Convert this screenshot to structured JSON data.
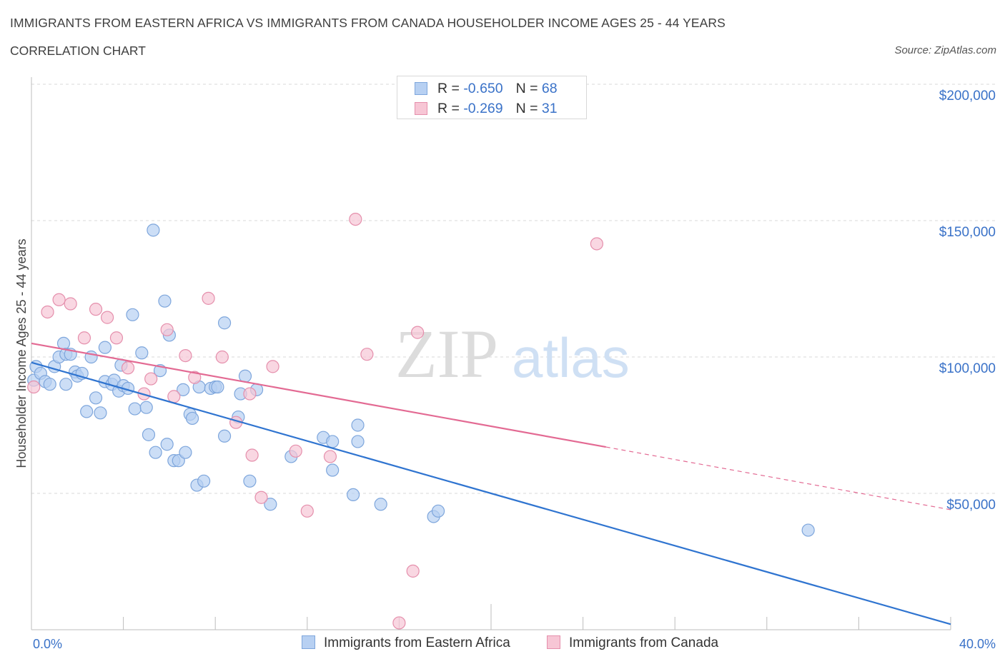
{
  "header": {
    "title": "IMMIGRANTS FROM EASTERN AFRICA VS IMMIGRANTS FROM CANADA HOUSEHOLDER INCOME AGES 25 - 44 YEARS",
    "subtitle": "CORRELATION CHART",
    "source": "Source: ZipAtlas.com"
  },
  "watermark": {
    "zip": "ZIP",
    "atlas": "atlas"
  },
  "legend": {
    "series1": {
      "r_label": "R = ",
      "r_value": "-0.650",
      "n_label": "N = ",
      "n_value": "68"
    },
    "series2": {
      "r_label": "R = ",
      "r_value": "-0.269",
      "n_label": "N = ",
      "n_value": "31"
    }
  },
  "colors": {
    "blue_fill": "#b7d0f2",
    "blue_stroke": "#7ea6dc",
    "blue_line": "#2f74d0",
    "pink_fill": "#f7c6d5",
    "pink_stroke": "#e58fac",
    "pink_line": "#e36a93",
    "grid": "#d9d9d9",
    "tick_text": "#3a72c8"
  },
  "chart_data": {
    "type": "scatter",
    "title": "IMMIGRANTS FROM EASTERN AFRICA VS IMMIGRANTS FROM CANADA HOUSEHOLDER INCOME AGES 25 - 44 YEARS",
    "ylabel": "Householder Income Ages 25 - 44 years",
    "xlabel": "",
    "xlim": [
      0,
      40
    ],
    "ylim": [
      0,
      200000
    ],
    "x_tick_labels": [
      "0.0%",
      "40.0%"
    ],
    "y_ticks": [
      50000,
      100000,
      150000,
      200000
    ],
    "y_tick_labels": [
      "$50,000",
      "$100,000",
      "$150,000",
      "$200,000"
    ],
    "grid": "horizontal dashed",
    "series": [
      {
        "name": "Immigrants from Eastern Africa",
        "points": [
          [
            0.1,
            91500
          ],
          [
            0.2,
            96500
          ],
          [
            0.4,
            94000
          ],
          [
            0.6,
            91000
          ],
          [
            0.8,
            90000
          ],
          [
            1.0,
            96500
          ],
          [
            1.2,
            100000
          ],
          [
            1.4,
            105000
          ],
          [
            1.5,
            101000
          ],
          [
            1.7,
            101000
          ],
          [
            1.9,
            94500
          ],
          [
            2.0,
            93000
          ],
          [
            2.2,
            94000
          ],
          [
            2.4,
            80000
          ],
          [
            2.6,
            100000
          ],
          [
            2.8,
            85000
          ],
          [
            3.0,
            79500
          ],
          [
            3.2,
            91000
          ],
          [
            3.2,
            103500
          ],
          [
            3.5,
            90000
          ],
          [
            3.6,
            91500
          ],
          [
            3.8,
            87500
          ],
          [
            3.9,
            97000
          ],
          [
            4.0,
            89500
          ],
          [
            4.2,
            88500
          ],
          [
            4.4,
            115500
          ],
          [
            4.5,
            81000
          ],
          [
            4.8,
            101500
          ],
          [
            5.0,
            81500
          ],
          [
            5.1,
            71500
          ],
          [
            5.3,
            146500
          ],
          [
            5.4,
            65000
          ],
          [
            5.6,
            95000
          ],
          [
            5.8,
            120500
          ],
          [
            5.9,
            68000
          ],
          [
            6.0,
            108000
          ],
          [
            6.2,
            62000
          ],
          [
            6.4,
            62000
          ],
          [
            6.6,
            88000
          ],
          [
            6.7,
            65000
          ],
          [
            6.9,
            79000
          ],
          [
            7.0,
            77500
          ],
          [
            7.2,
            53000
          ],
          [
            7.3,
            89000
          ],
          [
            7.5,
            54500
          ],
          [
            7.8,
            88500
          ],
          [
            8.0,
            89000
          ],
          [
            8.1,
            89000
          ],
          [
            8.4,
            112500
          ],
          [
            8.4,
            71000
          ],
          [
            9.0,
            78000
          ],
          [
            9.1,
            86500
          ],
          [
            9.3,
            93000
          ],
          [
            9.5,
            54500
          ],
          [
            9.8,
            88000
          ],
          [
            10.4,
            46000
          ],
          [
            11.3,
            63500
          ],
          [
            12.7,
            70500
          ],
          [
            13.1,
            69000
          ],
          [
            13.1,
            58500
          ],
          [
            14.0,
            49500
          ],
          [
            14.2,
            75000
          ],
          [
            14.2,
            69000
          ],
          [
            15.2,
            46000
          ],
          [
            17.5,
            41500
          ],
          [
            17.7,
            43500
          ],
          [
            33.8,
            36500
          ],
          [
            1.5,
            90000
          ]
        ],
        "trend": [
          [
            0,
            98000
          ],
          [
            40,
            2000
          ]
        ]
      },
      {
        "name": "Immigrants from Canada",
        "points": [
          [
            0.1,
            89000
          ],
          [
            0.7,
            116500
          ],
          [
            1.2,
            121000
          ],
          [
            1.7,
            119500
          ],
          [
            2.3,
            107000
          ],
          [
            2.8,
            117500
          ],
          [
            3.3,
            114500
          ],
          [
            3.7,
            107000
          ],
          [
            4.2,
            96000
          ],
          [
            4.9,
            86500
          ],
          [
            5.2,
            92000
          ],
          [
            5.9,
            110000
          ],
          [
            6.2,
            85500
          ],
          [
            6.7,
            100500
          ],
          [
            7.1,
            92500
          ],
          [
            7.7,
            121500
          ],
          [
            8.3,
            100000
          ],
          [
            8.9,
            76000
          ],
          [
            9.5,
            86500
          ],
          [
            9.6,
            64000
          ],
          [
            10.0,
            48500
          ],
          [
            10.5,
            96500
          ],
          [
            11.5,
            65500
          ],
          [
            12.0,
            43500
          ],
          [
            13.0,
            63500
          ],
          [
            14.1,
            150500
          ],
          [
            14.6,
            101000
          ],
          [
            16.6,
            21500
          ],
          [
            16.8,
            109000
          ],
          [
            16.0,
            2500
          ],
          [
            24.6,
            141500
          ]
        ],
        "trend": [
          [
            0,
            105000
          ],
          [
            25,
            67000
          ]
        ],
        "trend_dashed_extension": [
          [
            25,
            67000
          ],
          [
            40,
            44000
          ]
        ]
      }
    ]
  },
  "bottom_legend": {
    "series1": "Immigrants from Eastern Africa",
    "series2": "Immigrants from Canada"
  }
}
